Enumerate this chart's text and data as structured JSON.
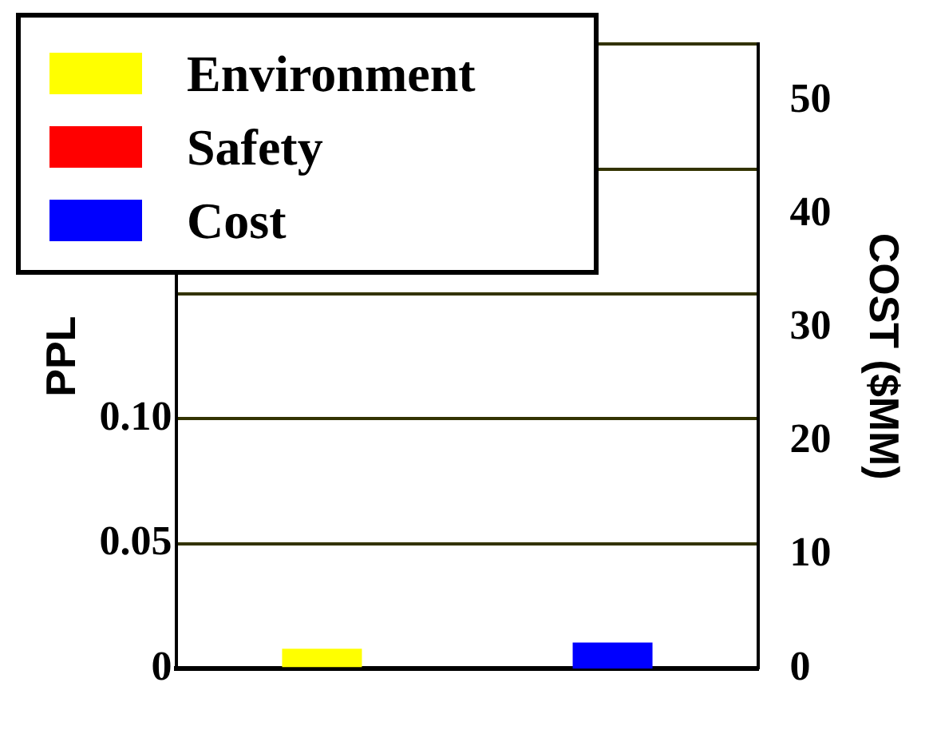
{
  "chart_data": {
    "type": "bar",
    "ylabel": "PPL",
    "y2label": "COST ($MM)",
    "categories": [
      null,
      null
    ],
    "series": [
      {
        "name": "Environment",
        "color": "#ffff00",
        "values": [
          0.008,
          null
        ]
      },
      {
        "name": "Safety",
        "color": "#ff0000",
        "values": [
          null,
          null
        ]
      },
      {
        "name": "Cost",
        "color": "#0000ff",
        "values": [
          null,
          2.3
        ],
        "axis": "y2"
      }
    ],
    "ylim": [
      0,
      0.25
    ],
    "yticks": [
      0,
      {
        "value": 0.05,
        "label": "0.05"
      },
      {
        "value": 0.1,
        "label": "0.10"
      },
      {
        "value": 0.15,
        "label": null
      },
      {
        "value": 0.2,
        "label": null
      },
      {
        "value": 0.25,
        "label": null
      }
    ],
    "y2lim": [
      0,
      55
    ],
    "y2ticks": [
      0,
      10,
      20,
      30,
      40,
      50
    ],
    "grid": "y",
    "legend": "top left"
  }
}
